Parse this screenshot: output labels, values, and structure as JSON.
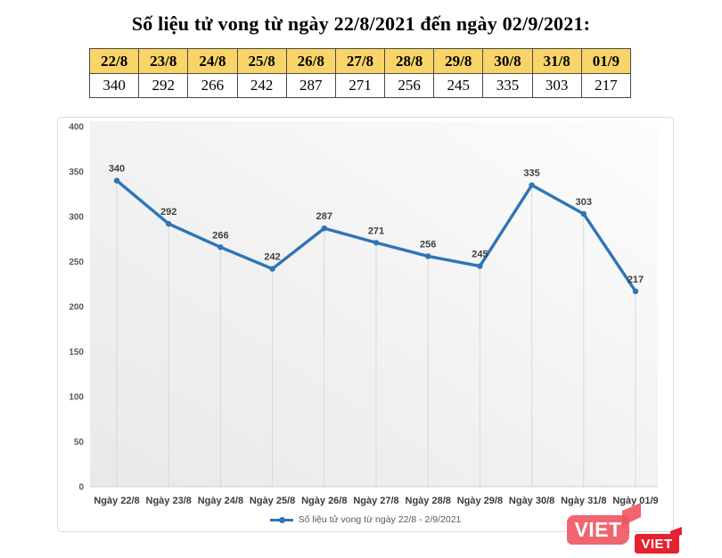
{
  "title": "Số liệu tử vong từ ngày 22/8/2021 đến ngày 02/9/2021:",
  "table": {
    "headers": [
      "22/8",
      "23/8",
      "24/8",
      "25/8",
      "26/8",
      "27/8",
      "28/8",
      "29/8",
      "30/8",
      "31/8",
      "01/9"
    ],
    "values": [
      "340",
      "292",
      "266",
      "242",
      "287",
      "271",
      "256",
      "245",
      "335",
      "303",
      "217"
    ]
  },
  "chart_data": {
    "type": "line",
    "categories": [
      "Ngày 22/8",
      "Ngày 23/8",
      "Ngày 24/8",
      "Ngày 25/8",
      "Ngày 26/8",
      "Ngày 27/8",
      "Ngày 28/8",
      "Ngày 29/8",
      "Ngày 30/8",
      "Ngày 31/8",
      "Ngày 01/9"
    ],
    "values": [
      340,
      292,
      266,
      242,
      287,
      271,
      256,
      245,
      335,
      303,
      217
    ],
    "title": "",
    "xlabel": "",
    "ylabel": "",
    "ylim": [
      0,
      400
    ],
    "ytick_step": 50,
    "grid": "vertical-drop-lines-only",
    "legend_label": "Số liệu tử vong từ ngày 22/8 - 2/9/2021",
    "legend_position": "bottom",
    "line_color": "#2e75b6",
    "data_label_color": "#404040",
    "axis_label_color": "#595959"
  },
  "watermark": {
    "badge_large": "VIET",
    "badge_small": "VIET"
  },
  "colors": {
    "table_header_bg": "#f8d469",
    "accent_blue": "#2e75b6",
    "watermark_pink": "#f05461",
    "watermark_red": "#e32330"
  }
}
